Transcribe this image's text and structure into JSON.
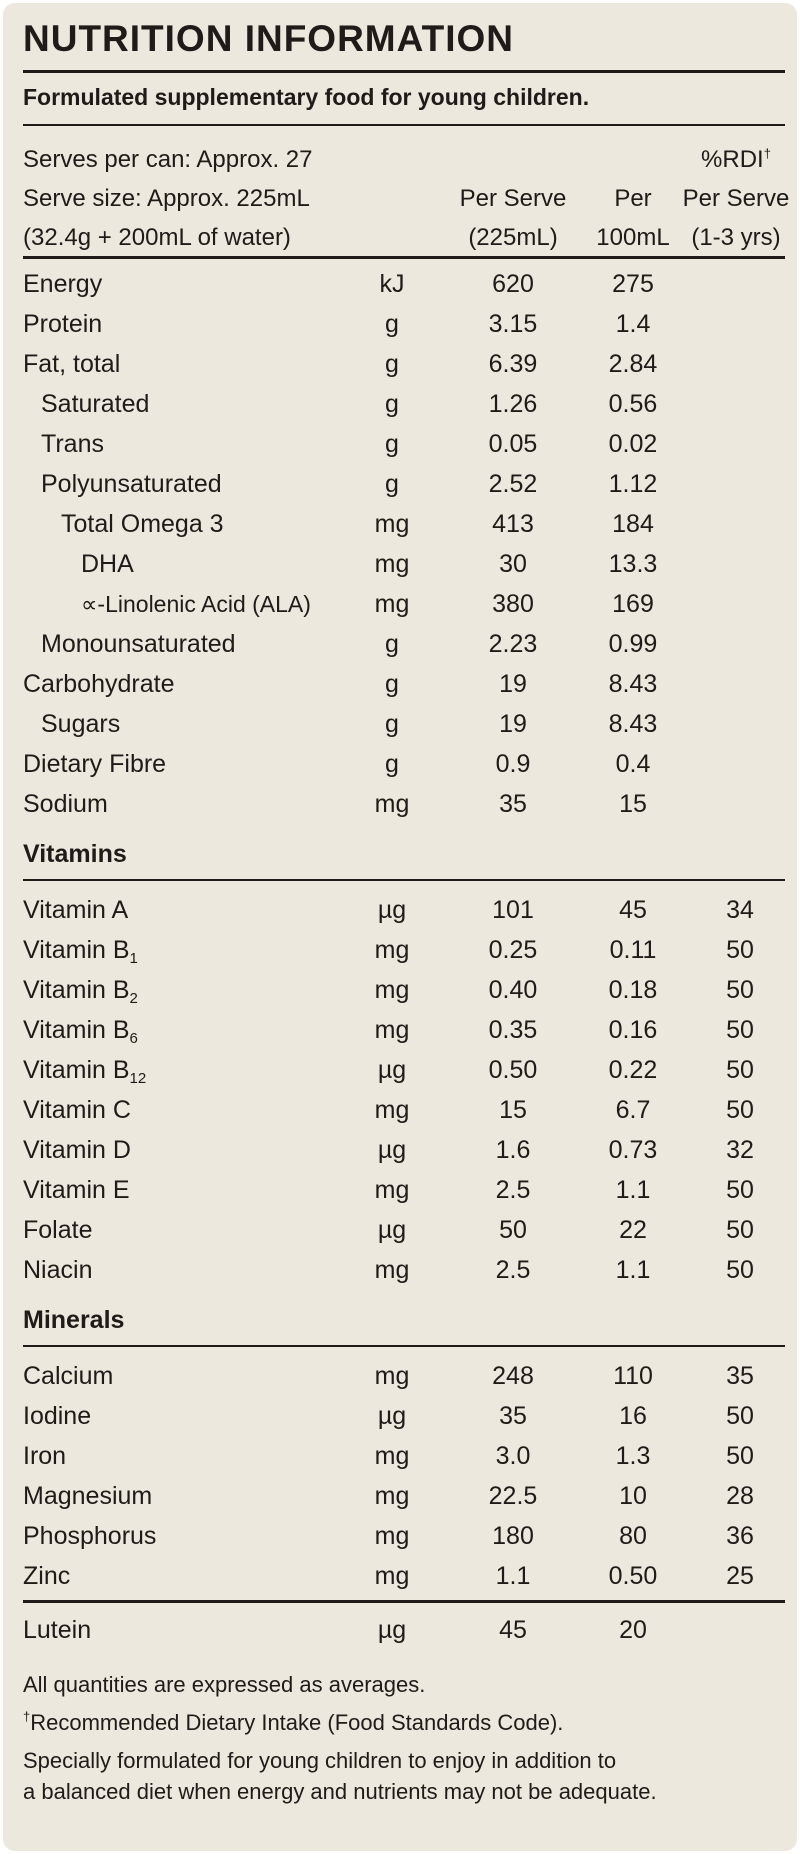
{
  "title": "NUTRITION INFORMATION",
  "subtitle": "Formulated supplementary food for young children.",
  "header": {
    "serves_per_can": "Serves per can: Approx. 27",
    "serve_size": "Serve size: Approx. 225mL",
    "serve_detail": "(32.4g + 200mL of water)",
    "per_serve_1": "Per Serve",
    "per_serve_2": "(225mL)",
    "per100_1": "Per",
    "per100_2": "100mL",
    "rdi_1": "%RDI",
    "rdi_mark": "†",
    "rdi_2": "Per Serve",
    "rdi_3": "(1-3 yrs)"
  },
  "nutrients": [
    {
      "name": "Energy",
      "unit": "kJ",
      "per_serve": "620",
      "per_100ml": "275",
      "rdi": ""
    },
    {
      "name": "Protein",
      "unit": "g",
      "per_serve": "3.15",
      "per_100ml": "1.4",
      "rdi": ""
    },
    {
      "name": "Fat, total",
      "unit": "g",
      "per_serve": "6.39",
      "per_100ml": "2.84",
      "rdi": ""
    },
    {
      "name": "Saturated",
      "unit": "g",
      "per_serve": "1.26",
      "per_100ml": "0.56",
      "rdi": ""
    },
    {
      "name": "Trans",
      "unit": "g",
      "per_serve": "0.05",
      "per_100ml": "0.02",
      "rdi": ""
    },
    {
      "name": "Polyunsaturated",
      "unit": "g",
      "per_serve": "2.52",
      "per_100ml": "1.12",
      "rdi": ""
    },
    {
      "name": "Total Omega 3",
      "unit": "mg",
      "per_serve": "413",
      "per_100ml": "184",
      "rdi": ""
    },
    {
      "name": "DHA",
      "unit": "mg",
      "per_serve": "30",
      "per_100ml": "13.3",
      "rdi": ""
    },
    {
      "name": "∝-Linolenic Acid (ALA)",
      "unit": "mg",
      "per_serve": "380",
      "per_100ml": "169",
      "rdi": ""
    },
    {
      "name": "Monounsaturated",
      "unit": "g",
      "per_serve": "2.23",
      "per_100ml": "0.99",
      "rdi": ""
    },
    {
      "name": "Carbohydrate",
      "unit": "g",
      "per_serve": "19",
      "per_100ml": "8.43",
      "rdi": ""
    },
    {
      "name": "Sugars",
      "unit": "g",
      "per_serve": "19",
      "per_100ml": "8.43",
      "rdi": ""
    },
    {
      "name": "Dietary Fibre",
      "unit": "g",
      "per_serve": "0.9",
      "per_100ml": "0.4",
      "rdi": ""
    },
    {
      "name": "Sodium",
      "unit": "mg",
      "per_serve": "35",
      "per_100ml": "15",
      "rdi": ""
    }
  ],
  "vitamins": {
    "heading": "Vitamins",
    "rows": [
      {
        "name": "Vitamin A",
        "sub": "",
        "unit": "µg",
        "per_serve": "101",
        "per_100ml": "45",
        "rdi": "34"
      },
      {
        "name": "Vitamin B",
        "sub": "1",
        "unit": "mg",
        "per_serve": "0.25",
        "per_100ml": "0.11",
        "rdi": "50"
      },
      {
        "name": "Vitamin B",
        "sub": "2",
        "unit": "mg",
        "per_serve": "0.40",
        "per_100ml": "0.18",
        "rdi": "50"
      },
      {
        "name": "Vitamin B",
        "sub": "6",
        "unit": "mg",
        "per_serve": "0.35",
        "per_100ml": "0.16",
        "rdi": "50"
      },
      {
        "name": "Vitamin B",
        "sub": "12",
        "unit": "µg",
        "per_serve": "0.50",
        "per_100ml": "0.22",
        "rdi": "50"
      },
      {
        "name": "Vitamin C",
        "sub": "",
        "unit": "mg",
        "per_serve": "15",
        "per_100ml": "6.7",
        "rdi": "50"
      },
      {
        "name": "Vitamin D",
        "sub": "",
        "unit": "µg",
        "per_serve": "1.6",
        "per_100ml": "0.73",
        "rdi": "32"
      },
      {
        "name": "Vitamin E",
        "sub": "",
        "unit": "mg",
        "per_serve": "2.5",
        "per_100ml": "1.1",
        "rdi": "50"
      },
      {
        "name": "Folate",
        "sub": "",
        "unit": "µg",
        "per_serve": "50",
        "per_100ml": "22",
        "rdi": "50"
      },
      {
        "name": "Niacin",
        "sub": "",
        "unit": "mg",
        "per_serve": "2.5",
        "per_100ml": "1.1",
        "rdi": "50"
      }
    ]
  },
  "minerals": {
    "heading": "Minerals",
    "rows": [
      {
        "name": "Calcium",
        "unit": "mg",
        "per_serve": "248",
        "per_100ml": "110",
        "rdi": "35"
      },
      {
        "name": "Iodine",
        "unit": "µg",
        "per_serve": "35",
        "per_100ml": "16",
        "rdi": "50"
      },
      {
        "name": "Iron",
        "unit": "mg",
        "per_serve": "3.0",
        "per_100ml": "1.3",
        "rdi": "50"
      },
      {
        "name": "Magnesium",
        "unit": "mg",
        "per_serve": "22.5",
        "per_100ml": "10",
        "rdi": "28"
      },
      {
        "name": "Phosphorus",
        "unit": "mg",
        "per_serve": "180",
        "per_100ml": "80",
        "rdi": "36"
      },
      {
        "name": "Zinc",
        "unit": "mg",
        "per_serve": "1.1",
        "per_100ml": "0.50",
        "rdi": "25"
      }
    ]
  },
  "lutein": {
    "name": "Lutein",
    "unit": "µg",
    "per_serve": "45",
    "per_100ml": "20",
    "rdi": ""
  },
  "footer": {
    "averages": "All quantities are expressed as averages.",
    "rdi_mark": "†",
    "rdi_note": "Recommended Dietary Intake (Food Standards Code).",
    "formulated_1": "Specially formulated for young children to enjoy in addition to",
    "formulated_2": "a balanced diet when energy and nutrients may not be adequate."
  }
}
